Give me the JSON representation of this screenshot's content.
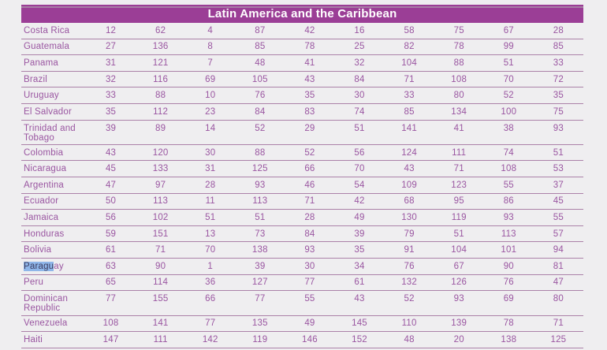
{
  "header": {
    "title": "Latin America and the Caribbean"
  },
  "colors": {
    "header_background": "#9b3e96",
    "header_text": "#ffffff",
    "body_text": "#9a56a1",
    "row_divider": "#ab81a8",
    "page_background": "#efeef0",
    "text_selection_background": "#8fb6e9",
    "text_selection_text": "#3c3c60"
  },
  "table": {
    "rows": [
      {
        "country": "Costa Rica",
        "values": [
          12,
          62,
          4,
          87,
          42,
          16,
          58,
          75,
          67,
          28
        ]
      },
      {
        "country": "Guatemala",
        "values": [
          27,
          136,
          8,
          85,
          78,
          25,
          82,
          78,
          99,
          85
        ]
      },
      {
        "country": "Panama",
        "values": [
          31,
          121,
          7,
          48,
          41,
          32,
          104,
          88,
          51,
          33
        ]
      },
      {
        "country": "Brazil",
        "values": [
          32,
          116,
          69,
          105,
          43,
          84,
          71,
          108,
          70,
          72
        ]
      },
      {
        "country": "Uruguay",
        "values": [
          33,
          88,
          10,
          76,
          35,
          30,
          33,
          80,
          52,
          35
        ]
      },
      {
        "country": "El Salvador",
        "values": [
          35,
          112,
          23,
          84,
          83,
          74,
          85,
          134,
          100,
          75
        ]
      },
      {
        "country": "Trinidad and Tobago",
        "two_line": true,
        "values": [
          39,
          89,
          14,
          52,
          29,
          51,
          141,
          41,
          38,
          93
        ]
      },
      {
        "country": "Colombia",
        "values": [
          43,
          120,
          30,
          88,
          52,
          56,
          124,
          111,
          74,
          51
        ]
      },
      {
        "country": "Nicaragua",
        "values": [
          45,
          133,
          31,
          125,
          66,
          70,
          43,
          71,
          108,
          53
        ]
      },
      {
        "country": "Argentina",
        "values": [
          47,
          97,
          28,
          93,
          46,
          54,
          109,
          123,
          55,
          37
        ]
      },
      {
        "country": "Ecuador",
        "values": [
          50,
          113,
          11,
          113,
          71,
          42,
          68,
          95,
          86,
          45
        ]
      },
      {
        "country": "Jamaica",
        "values": [
          56,
          102,
          51,
          51,
          28,
          49,
          130,
          119,
          93,
          55
        ]
      },
      {
        "country": "Honduras",
        "values": [
          59,
          151,
          13,
          73,
          84,
          39,
          79,
          51,
          113,
          57
        ]
      },
      {
        "country": "Bolivia",
        "values": [
          61,
          71,
          70,
          138,
          93,
          35,
          91,
          104,
          101,
          94
        ]
      },
      {
        "country": "Paraguay",
        "selection": {
          "highlighted": "Paragu",
          "rest": "ay"
        },
        "values": [
          63,
          90,
          1,
          39,
          30,
          34,
          76,
          67,
          90,
          81
        ]
      },
      {
        "country": "Peru",
        "values": [
          65,
          114,
          36,
          127,
          77,
          61,
          132,
          126,
          76,
          47
        ]
      },
      {
        "country": "Dominican Republic",
        "two_line": true,
        "values": [
          77,
          155,
          66,
          77,
          55,
          43,
          52,
          93,
          69,
          80
        ]
      },
      {
        "country": "Venezuela",
        "values": [
          108,
          141,
          77,
          135,
          49,
          145,
          110,
          139,
          78,
          71
        ]
      },
      {
        "country": "Haiti",
        "values": [
          147,
          111,
          142,
          119,
          146,
          152,
          48,
          20,
          138,
          125
        ]
      }
    ]
  }
}
